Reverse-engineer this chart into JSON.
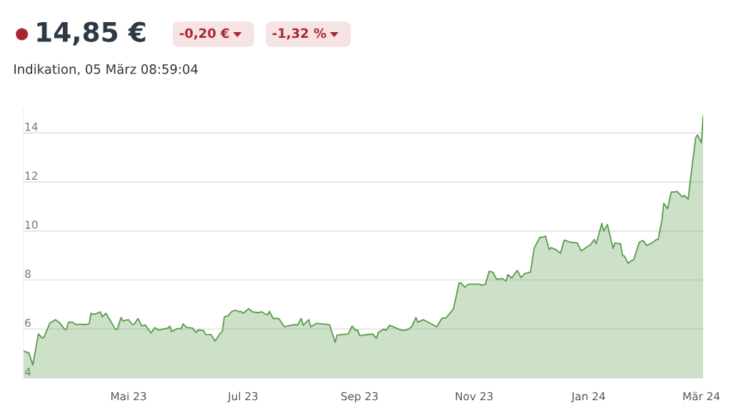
{
  "chart_data": {
    "type": "area",
    "title": "14,85 €",
    "subtitle": "Indikation, 05 März 08:59:04",
    "annotations": [
      "-0,20 €",
      "-1,32 %"
    ],
    "x": [
      "2023-03-06",
      "2023-03-09",
      "2023-03-11",
      "2023-03-14",
      "2023-03-16",
      "2023-03-17",
      "2023-03-20",
      "2023-03-23",
      "2023-03-25",
      "2023-03-28",
      "2023-03-29",
      "2023-03-30",
      "2023-04-01",
      "2023-04-03",
      "2023-04-06",
      "2023-04-07",
      "2023-04-10",
      "2023-04-11",
      "2023-04-13",
      "2023-04-16",
      "2023-04-17",
      "2023-04-19",
      "2023-04-24",
      "2023-04-25",
      "2023-04-27",
      "2023-04-28",
      "2023-05-01",
      "2023-05-03",
      "2023-05-04",
      "2023-05-06",
      "2023-05-08",
      "2023-05-10",
      "2023-05-13",
      "2023-05-15",
      "2023-05-17",
      "2023-05-22",
      "2023-05-23",
      "2023-05-24",
      "2023-05-27",
      "2023-05-29",
      "2023-05-30",
      "2023-06-01",
      "2023-06-04",
      "2023-06-06",
      "2023-06-07",
      "2023-06-10",
      "2023-06-11",
      "2023-06-14",
      "2023-06-16",
      "2023-06-19",
      "2023-06-20",
      "2023-06-21",
      "2023-06-23",
      "2023-06-25",
      "2023-06-27",
      "2023-06-29",
      "2023-06-30",
      "2023-07-01",
      "2023-07-04",
      "2023-07-06",
      "2023-07-09",
      "2023-07-11",
      "2023-07-14",
      "2023-07-15",
      "2023-07-17",
      "2023-07-20",
      "2023-07-23",
      "2023-07-28",
      "2023-07-30",
      "2023-08-01",
      "2023-08-02",
      "2023-08-05",
      "2023-08-06",
      "2023-08-09",
      "2023-08-16",
      "2023-08-17",
      "2023-08-19",
      "2023-08-20",
      "2023-08-26",
      "2023-08-28",
      "2023-08-30",
      "2023-08-31",
      "2023-09-01",
      "2023-09-08",
      "2023-09-10",
      "2023-09-11",
      "2023-09-14",
      "2023-09-15",
      "2023-09-17",
      "2023-09-19",
      "2023-09-22",
      "2023-09-24",
      "2023-09-27",
      "2023-09-29",
      "2023-10-01",
      "2023-10-02",
      "2023-10-05",
      "2023-10-10",
      "2023-10-12",
      "2023-10-15",
      "2023-10-17",
      "2023-10-21",
      "2023-10-24",
      "2023-10-25",
      "2023-10-27",
      "2023-10-29",
      "2023-11-02",
      "2023-11-04",
      "2023-11-05",
      "2023-11-07",
      "2023-11-09",
      "2023-11-11",
      "2023-11-13",
      "2023-11-16",
      "2023-11-18",
      "2023-11-19",
      "2023-11-21",
      "2023-11-24",
      "2023-11-26",
      "2023-11-28",
      "2023-12-01",
      "2023-12-03",
      "2023-12-06",
      "2023-12-07",
      "2023-12-09",
      "2023-12-11",
      "2023-12-12",
      "2023-12-15",
      "2023-12-17",
      "2023-12-19",
      "2023-12-22",
      "2023-12-26",
      "2023-12-28",
      "2023-12-31",
      "2024-01-02",
      "2024-01-04",
      "2024-01-05",
      "2024-01-08",
      "2024-01-09",
      "2024-01-11",
      "2024-01-14",
      "2024-01-15",
      "2024-01-17",
      "2024-01-18",
      "2024-01-19",
      "2024-01-20",
      "2024-01-22",
      "2024-01-24",
      "2024-01-25",
      "2024-01-28",
      "2024-01-30",
      "2024-02-01",
      "2024-02-04",
      "2024-02-06",
      "2024-02-07",
      "2024-02-09",
      "2024-02-10",
      "2024-02-12",
      "2024-02-14",
      "2024-02-16",
      "2024-02-17",
      "2024-02-20",
      "2024-02-21",
      "2024-02-23",
      "2024-02-24",
      "2024-02-27",
      "2024-02-28",
      "2024-03-01",
      "2024-03-02"
    ],
    "series": [
      {
        "color": "#5a9a4c",
        "values": [
          5.1,
          5.02,
          4.53,
          5.8,
          5.63,
          5.67,
          6.23,
          6.38,
          6.28,
          5.99,
          5.99,
          6.28,
          6.28,
          6.18,
          6.2,
          6.18,
          6.21,
          6.64,
          6.6,
          6.7,
          6.5,
          6.64,
          5.99,
          5.99,
          6.47,
          6.33,
          6.38,
          6.18,
          6.2,
          6.43,
          6.13,
          6.16,
          5.84,
          6.06,
          5.96,
          6.04,
          6.12,
          5.89,
          6.02,
          6.02,
          6.21,
          6.06,
          6.04,
          5.86,
          5.96,
          5.94,
          5.78,
          5.77,
          5.51,
          5.84,
          5.92,
          6.5,
          6.54,
          6.72,
          6.77,
          6.7,
          6.72,
          6.64,
          6.83,
          6.7,
          6.67,
          6.7,
          6.57,
          6.72,
          6.43,
          6.43,
          6.09,
          6.18,
          6.16,
          6.43,
          6.15,
          6.38,
          6.09,
          6.23,
          6.18,
          5.94,
          5.46,
          5.75,
          5.8,
          6.12,
          5.94,
          5.96,
          5.73,
          5.8,
          5.62,
          5.86,
          6.0,
          5.94,
          6.15,
          6.09,
          5.99,
          5.94,
          5.99,
          6.12,
          6.47,
          6.28,
          6.38,
          6.18,
          6.09,
          6.45,
          6.45,
          6.82,
          7.88,
          7.88,
          7.71,
          7.83,
          7.83,
          7.83,
          7.78,
          7.83,
          8.35,
          8.32,
          8.03,
          8.06,
          7.96,
          8.22,
          8.08,
          8.39,
          8.1,
          8.27,
          8.32,
          9.29,
          9.74,
          9.74,
          9.79,
          9.24,
          9.32,
          9.22,
          9.09,
          9.63,
          9.55,
          9.51,
          9.19,
          9.34,
          9.44,
          9.65,
          9.48,
          10.31,
          10.0,
          10.26,
          9.29,
          9.51,
          9.48,
          9.48,
          9.0,
          8.98,
          8.68,
          8.8,
          8.83,
          9.55,
          9.61,
          9.41,
          9.53,
          9.65,
          9.65,
          10.43,
          11.13,
          10.91,
          11.59,
          11.59,
          11.62,
          11.39,
          11.45,
          11.3,
          11.98,
          13.8,
          13.92,
          13.59,
          14.69
        ]
      }
    ],
    "xlim": [
      "2023-03-06",
      "2024-03-02"
    ],
    "xticks": [
      {
        "value": "2023-05-01",
        "label": "Mai 23"
      },
      {
        "value": "2023-07-01",
        "label": "Jul 23"
      },
      {
        "value": "2023-09-01",
        "label": "Sep 23"
      },
      {
        "value": "2023-11-01",
        "label": "Nov 23"
      },
      {
        "value": "2024-01-01",
        "label": "Jan 24"
      },
      {
        "value": "2024-03-01",
        "label": "Mär 24"
      }
    ],
    "ylim": [
      4,
      15
    ],
    "yticks": [
      4,
      6,
      8,
      10,
      12,
      14
    ],
    "grid": "y"
  }
}
